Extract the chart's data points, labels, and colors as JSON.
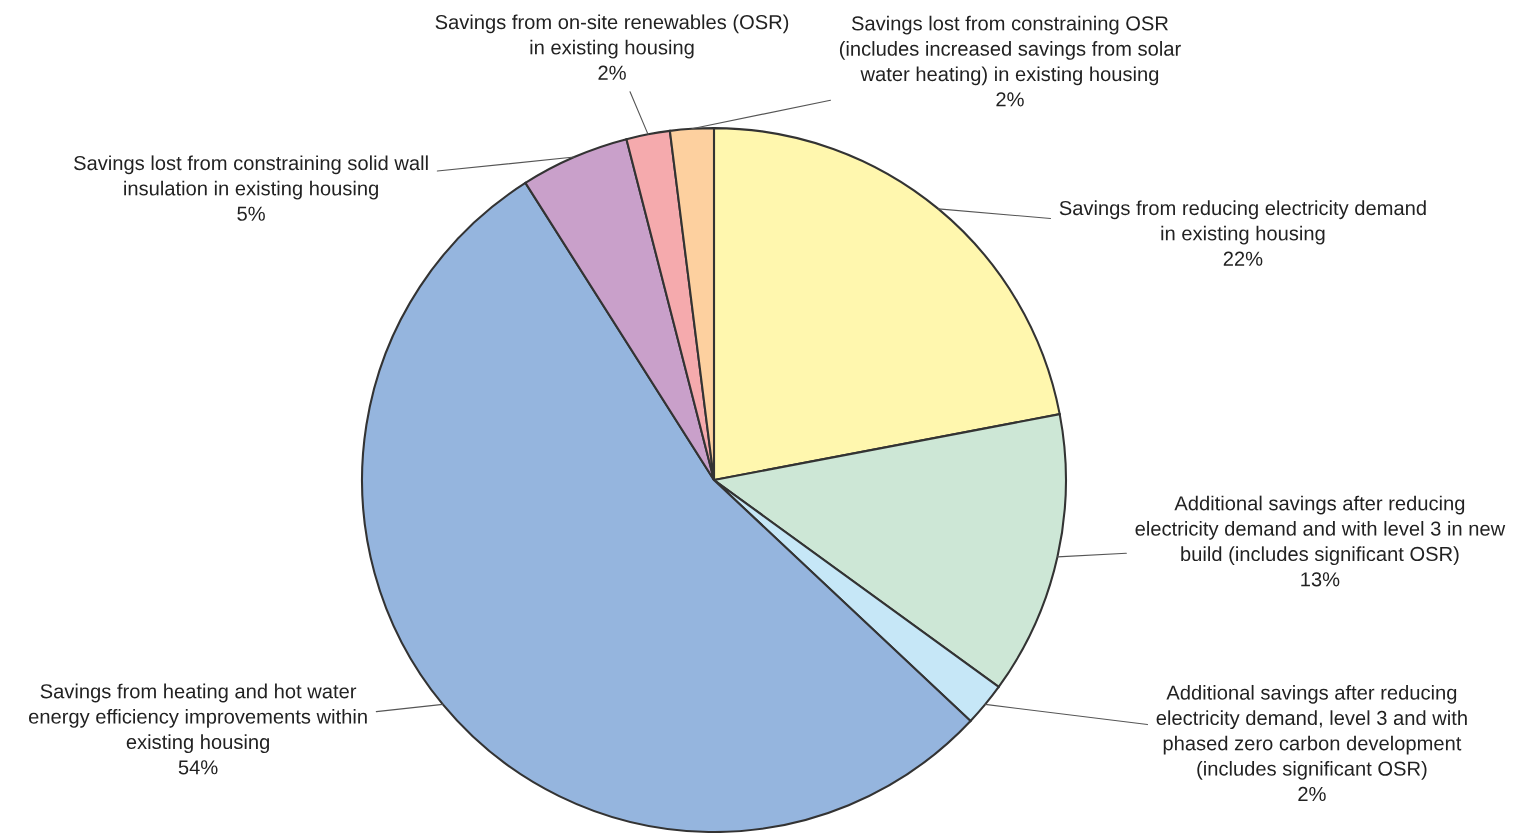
{
  "chart_data": {
    "type": "pie",
    "categories": [
      "Savings from reducing electricity demand\nin existing housing",
      "Additional savings after reducing\nelectricity demand and with level 3 in new\nbuild (includes significant OSR)",
      "Additional savings after reducing\nelectricity demand, level 3 and with\nphased zero carbon development\n(includes significant OSR)",
      "Savings from heating and hot water\nenergy efficiency improvements within\nexisting housing",
      "Savings lost from constraining solid wall\ninsulation in existing housing",
      "Savings from on-site renewables (OSR)\nin existing housing",
      "Savings lost from constraining OSR\n(includes increased savings from solar\nwater heating) in existing housing"
    ],
    "values": [
      22,
      13,
      2,
      54,
      5,
      2,
      2
    ],
    "colors": [
      "#fff7ae",
      "#cde7d6",
      "#c6e7f7",
      "#95b5de",
      "#c9a0ca",
      "#f5aaad",
      "#fdd09f"
    ],
    "value_labels": [
      "22%",
      "13%",
      "2%",
      "54%",
      "5%",
      "2%",
      "2%"
    ]
  }
}
